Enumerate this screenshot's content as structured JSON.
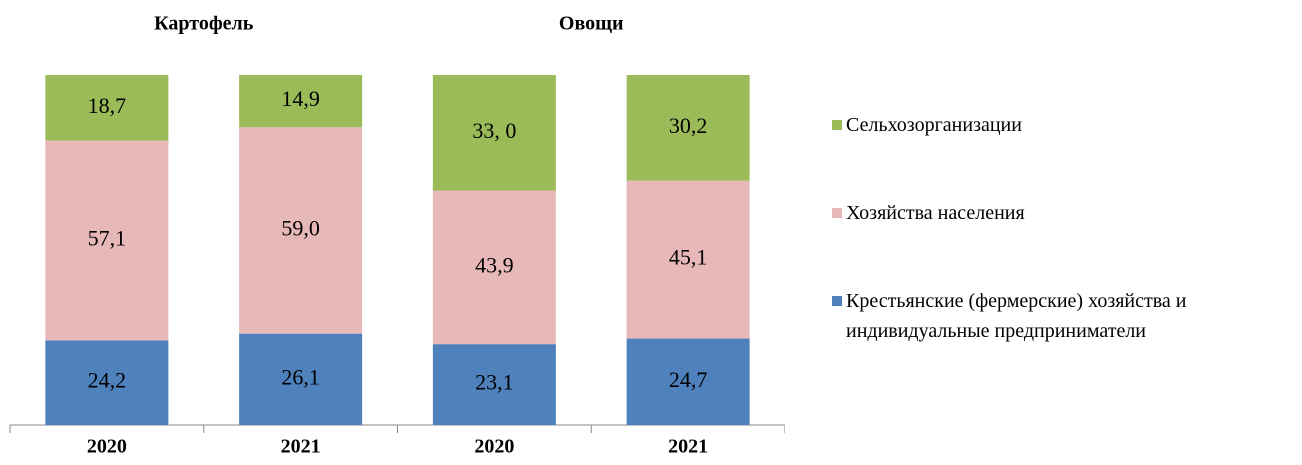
{
  "chart_data": {
    "type": "stacked_bar",
    "groups": [
      "Картофель",
      "Овощи"
    ],
    "categories": [
      "2020",
      "2021",
      "2020",
      "2021"
    ],
    "ylim": [
      0,
      100
    ],
    "series": [
      {
        "name": "Крестьянские (фермерские) хозяйства и индивидуальные предприниматели",
        "color": "#4f81bd",
        "values": [
          24.2,
          26.1,
          23.1,
          24.7
        ],
        "value_labels": [
          "24,2",
          "26,1",
          "23,1",
          "24,7"
        ]
      },
      {
        "name": "Хозяйства населения",
        "color": "#e6b9b8",
        "values": [
          57.1,
          59.0,
          43.9,
          45.1
        ],
        "value_labels": [
          "57,1",
          "59,0",
          "43,9",
          "45,1"
        ]
      },
      {
        "name": "Сельхозорганизации",
        "color": "#9bbb59",
        "values": [
          18.7,
          14.9,
          33.0,
          30.2
        ],
        "value_labels": [
          "18,7",
          "14,9",
          "33, 0",
          "30,2"
        ]
      }
    ]
  }
}
